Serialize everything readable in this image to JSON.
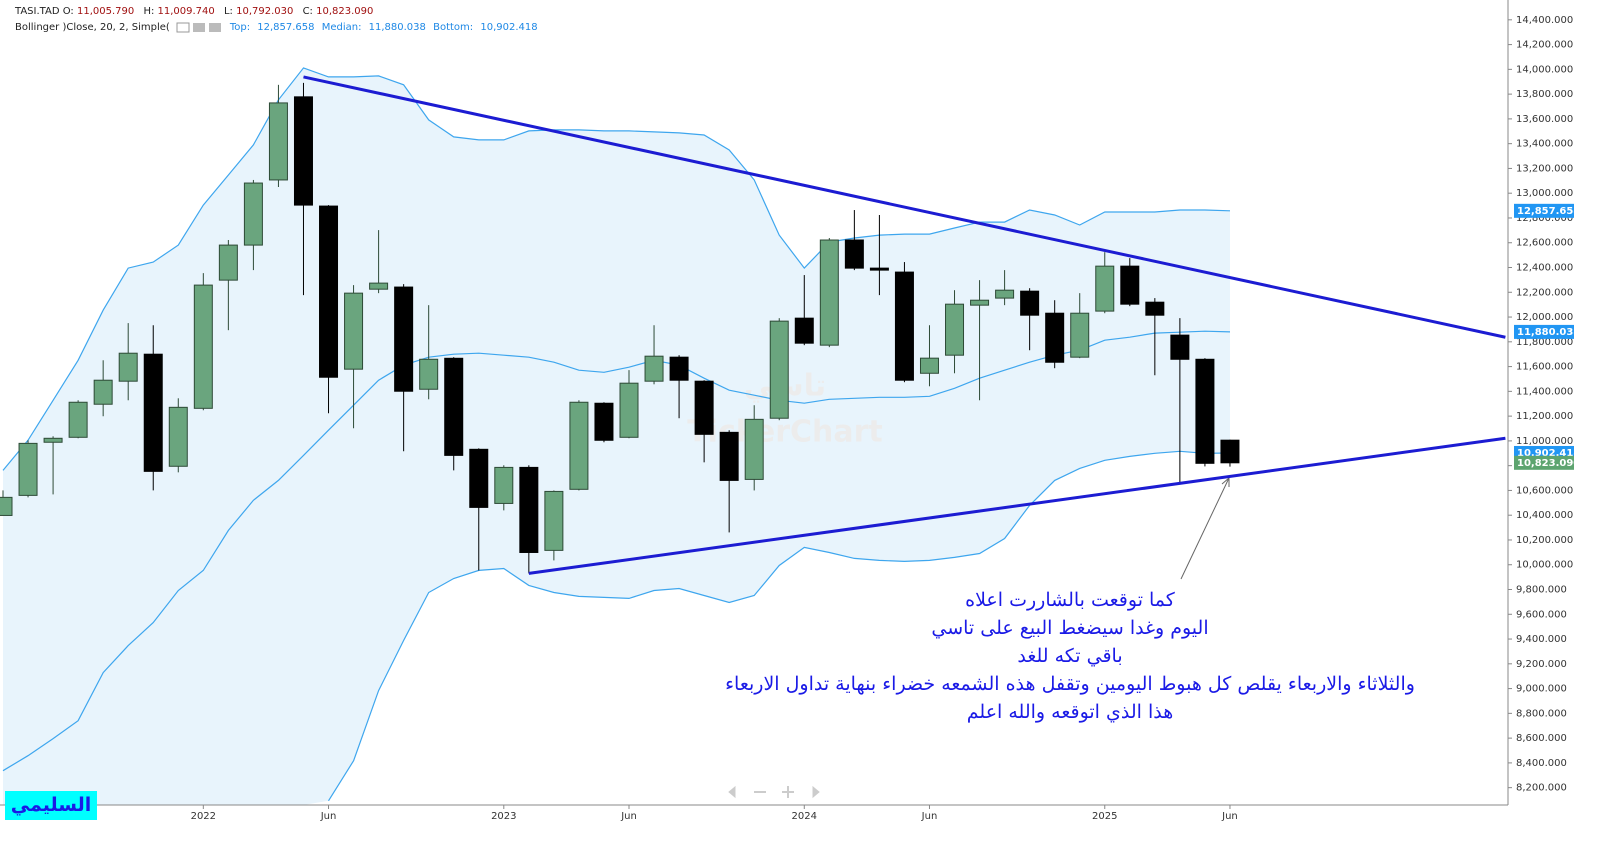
{
  "chart_data": {
    "type": "candlestick",
    "symbol": "TASI.TAD",
    "ohlc_header": [
      {
        "name": "O:",
        "label": "11,005.790"
      },
      {
        "name": "H:",
        "label": "11,009.740"
      },
      {
        "name": "L:",
        "label": "10,792.030"
      },
      {
        "name": "C:",
        "label": "10,823.090"
      }
    ],
    "x": [
      "2021-05",
      "2021-06",
      "2021-07",
      "2021-08",
      "2021-09",
      "2021-10",
      "2021-11",
      "2021-12",
      "2022-01",
      "2022-02",
      "2022-03",
      "2022-04",
      "2022-05",
      "2022-06",
      "2022-07",
      "2022-08",
      "2022-09",
      "2022-10",
      "2022-11",
      "2022-12",
      "2023-01",
      "2023-02",
      "2023-03",
      "2023-04",
      "2023-05",
      "2023-06",
      "2023-07",
      "2023-08",
      "2023-09",
      "2023-10",
      "2023-11",
      "2023-12",
      "2024-01",
      "2024-02",
      "2024-03",
      "2024-04",
      "2024-05",
      "2024-06",
      "2024-07",
      "2024-08",
      "2024-09",
      "2024-10",
      "2024-11",
      "2024-12",
      "2025-01",
      "2025-02",
      "2025-03",
      "2025-04",
      "2025-05",
      "2025-06"
    ],
    "open": [
      10398,
      10560,
      10989,
      11029,
      11296,
      11482,
      11700,
      10795,
      11263,
      12298,
      12581,
      13107,
      13778,
      12896,
      11579,
      12225,
      12242,
      11417,
      11667,
      10932,
      10495,
      10786,
      10116,
      10609,
      11304,
      11029,
      11482,
      11676,
      11482,
      11069,
      10689,
      11183,
      11991,
      11773,
      12622,
      12395,
      12363,
      11546,
      11692,
      12096,
      12153,
      12209,
      12031,
      11676,
      12048,
      12411,
      12120,
      11854,
      11659,
      11005.79
    ],
    "high": [
      10600,
      11005,
      11037,
      11328,
      11651,
      11951,
      11934,
      11344,
      12355,
      12622,
      13107,
      13875,
      13891,
      12904,
      12258,
      12702,
      12266,
      12096,
      11676,
      10940,
      10803,
      10803,
      10600,
      11328,
      11312,
      11571,
      11934,
      11692,
      11490,
      11086,
      11288,
      11991,
      12339,
      12638,
      12864,
      12824,
      12444,
      11934,
      12217,
      12298,
      12379,
      12233,
      12136,
      12193,
      12524,
      12476,
      12153,
      11991,
      11668,
      11009.74
    ],
    "low": [
      10398,
      10544,
      10568,
      11021,
      11199,
      11328,
      10600,
      10746,
      11247,
      11894,
      12379,
      13050,
      12177,
      11223,
      11102,
      12193,
      10916,
      11336,
      10762,
      9954,
      10439,
      9930,
      10035,
      10600,
      10989,
      11021,
      11457,
      11183,
      10827,
      10261,
      10600,
      11167,
      11773,
      11757,
      12379,
      12177,
      11474,
      11441,
      11546,
      11328,
      12096,
      11732,
      11587,
      11668,
      12031,
      12088,
      11530,
      10657,
      10794,
      10792.03
    ],
    "close": [
      10544,
      10980,
      11021,
      11312,
      11490,
      11708,
      10754,
      11271,
      12258,
      12581,
      13082,
      13729,
      12904,
      11514,
      12193,
      12274,
      11401,
      11659,
      10883,
      10463,
      10786,
      10099,
      10592,
      11312,
      11005,
      11466,
      11684,
      11490,
      11053,
      10681,
      11174,
      11967,
      11789,
      12622,
      12395,
      12379,
      11490,
      11668,
      12104,
      12136,
      12217,
      12015,
      11635,
      12031,
      12411,
      12104,
      12015,
      11659,
      10819,
      10823.09
    ],
    "up_color": "#6aa57e",
    "down_color": "#000000",
    "bollinger": {
      "label": "Bollinger",
      "params": ")Close, 20, 2, Simple(",
      "color": "#3ea6ee",
      "fill": "#e8f4fc",
      "series": [
        {
          "name": "Top:",
          "value_label": "12,857.658",
          "values": [
            10762,
            11005,
            11328,
            11651,
            12056,
            12395,
            12444,
            12581,
            12904,
            13147,
            13390,
            13753,
            14012,
            13939,
            13939,
            13947,
            13875,
            13592,
            13455,
            13430,
            13430,
            13503,
            13511,
            13511,
            13503,
            13503,
            13495,
            13487,
            13470,
            13349,
            13107,
            12662,
            12395,
            12605,
            12638,
            12662,
            12670,
            12670,
            12719,
            12767,
            12767,
            12864,
            12824,
            12743,
            12848,
            12848,
            12848,
            12864,
            12864,
            12857.658
          ]
        },
        {
          "name": "Median:",
          "value_label": "11,880.038",
          "values": [
            8337,
            8458,
            8596,
            8741,
            9129,
            9347,
            9533,
            9792,
            9954,
            10277,
            10520,
            10681,
            10883,
            11086,
            11288,
            11490,
            11611,
            11676,
            11700,
            11708,
            11692,
            11676,
            11635,
            11571,
            11554,
            11595,
            11651,
            11611,
            11506,
            11409,
            11369,
            11328,
            11304,
            11336,
            11344,
            11352,
            11352,
            11360,
            11425,
            11506,
            11571,
            11635,
            11692,
            11732,
            11813,
            11837,
            11870,
            11878,
            11886,
            11880.038
          ]
        },
        {
          "name": "Bottom:",
          "value_label": "10,902.418",
          "values": [
            null,
            null,
            null,
            null,
            null,
            null,
            null,
            null,
            null,
            null,
            null,
            null,
            null,
            8094,
            8418,
            8984,
            9388,
            9776,
            9889,
            9954,
            9970,
            9833,
            9776,
            9744,
            9736,
            9728,
            9792,
            9808,
            9752,
            9695,
            9752,
            9994,
            10140,
            10099,
            10051,
            10035,
            10027,
            10035,
            10059,
            10091,
            10212,
            10479,
            10681,
            10778,
            10843,
            10875,
            10900,
            10916,
            10900,
            10902.418
          ]
        }
      ]
    },
    "price_tags": [
      {
        "value": 12857.658,
        "label": "12,857.658",
        "color": "#2196f3"
      },
      {
        "value": 11880.038,
        "label": "11,880.038",
        "color": "#2196f3"
      },
      {
        "value": 10902.418,
        "label": "10,902.418",
        "color": "#2196f3"
      },
      {
        "value": 10823.09,
        "label": "10,823.090",
        "color": "#5da46f"
      }
    ],
    "trendlines": [
      {
        "x": [
          "2022-05",
          "2026-05"
        ],
        "values": [
          13939,
          11837
        ],
        "color": "#1c1cd2"
      },
      {
        "x": [
          "2023-02",
          "2026-05"
        ],
        "values": [
          9930,
          11021
        ],
        "color": "#1c1cd2"
      }
    ],
    "ylim": [
      8060,
      14560
    ],
    "yticks": [
      {
        "value": 8200,
        "label": "8,200.000"
      },
      {
        "value": 8400,
        "label": "8,400.000"
      },
      {
        "value": 8600,
        "label": "8,600.000"
      },
      {
        "value": 8800,
        "label": "8,800.000"
      },
      {
        "value": 9000,
        "label": "9,000.000"
      },
      {
        "value": 9200,
        "label": "9,200.000"
      },
      {
        "value": 9400,
        "label": "9,400.000"
      },
      {
        "value": 9600,
        "label": "9,600.000"
      },
      {
        "value": 9800,
        "label": "9,800.000"
      },
      {
        "value": 10000,
        "label": "10,000.000"
      },
      {
        "value": 10200,
        "label": "10,200.000"
      },
      {
        "value": 10400,
        "label": "10,400.000"
      },
      {
        "value": 10600,
        "label": "10,600.000"
      },
      {
        "value": 10800,
        "label": "10,800.000"
      },
      {
        "value": 11000,
        "label": "11,000.000"
      },
      {
        "value": 11200,
        "label": "11,200.000"
      },
      {
        "value": 11400,
        "label": "11,400.000"
      },
      {
        "value": 11600,
        "label": "11,600.000"
      },
      {
        "value": 11800,
        "label": "11,800.000"
      },
      {
        "value": 12000,
        "label": "12,000.000"
      },
      {
        "value": 12200,
        "label": "12,200.000"
      },
      {
        "value": 12400,
        "label": "12,400.000"
      },
      {
        "value": 12600,
        "label": "12,600.000"
      },
      {
        "value": 12800,
        "label": "12,800.000"
      },
      {
        "value": 13000,
        "label": "13,000.000"
      },
      {
        "value": 13200,
        "label": "13,200.000"
      },
      {
        "value": 13400,
        "label": "13,400.000"
      },
      {
        "value": 13600,
        "label": "13,600.000"
      },
      {
        "value": 13800,
        "label": "13,800.000"
      },
      {
        "value": 14000,
        "label": "14,000.000"
      },
      {
        "value": 14200,
        "label": "14,200.000"
      },
      {
        "value": 14400,
        "label": "14,400.000"
      }
    ],
    "xticks": [
      {
        "value": "2022-01",
        "label": "2022"
      },
      {
        "value": "2022-06",
        "label": "Jun"
      },
      {
        "value": "2023-01",
        "label": "2023"
      },
      {
        "value": "2023-06",
        "label": "Jun"
      },
      {
        "value": "2024-01",
        "label": "2024"
      },
      {
        "value": "2024-06",
        "label": "Jun"
      },
      {
        "value": "2025-01",
        "label": "2025"
      },
      {
        "value": "2025-06",
        "label": "Jun"
      }
    ],
    "grid": false,
    "watermark": [
      "تاسي",
      "TickerChart"
    ]
  },
  "annotation": [
    "كما توقعت بالشاررت اعلاه",
    "اليوم وغدا سيضغط البيع على تاسي",
    "باقي تكه للغد",
    "والثلاثاء والاربعاء يقلص كل هبوط اليومين وتقفل هذه الشمعه خضراء بنهاية تداول الاربعاء",
    "هذا الذي اتوقعه والله اعلم"
  ],
  "signature": "السليمي"
}
